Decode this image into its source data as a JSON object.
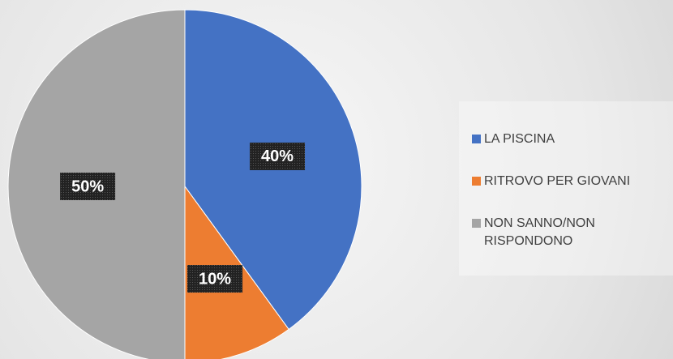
{
  "chart_data": {
    "type": "pie",
    "categories": [
      "LA PISCINA",
      "RITROVO PER GIOVANI",
      "NON SANNO/NON RISPONDONO"
    ],
    "values": [
      40,
      10,
      50
    ],
    "value_labels": [
      "40%",
      "10%",
      "50%"
    ],
    "colors": [
      "#4472c4",
      "#ed7d31",
      "#a5a5a5"
    ],
    "legend": "right"
  }
}
